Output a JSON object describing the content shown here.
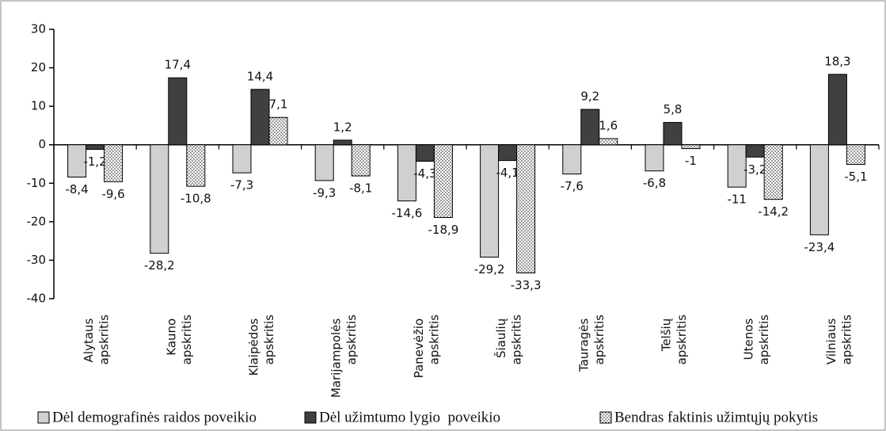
{
  "chart_data": {
    "type": "bar",
    "categories": [
      "Alytaus apskritis",
      "Kauno apskritis",
      "Klaipėdos apskritis",
      "Marijampolės apskritis",
      "Panevėžio apskritis",
      "Šiaulių apskritis",
      "Tauragės apskritis",
      "Telšių apskritis",
      "Utenos apskritis",
      "Vilniaus apskritis"
    ],
    "series": [
      {
        "name": "Dėl demografinės raidos poveikio",
        "color": "#d0d0d0",
        "values": [
          -8.4,
          -28.2,
          -7.3,
          -9.3,
          -14.6,
          -29.2,
          -7.6,
          -6.8,
          -11,
          -23.4
        ],
        "value_labels": [
          "-8,4",
          "-28,2",
          "-7,3",
          "-9,3",
          "-14,6",
          "-29,2",
          "-7,6",
          "-6,8",
          "-11",
          "-23,4"
        ]
      },
      {
        "name": "Dėl užimtumo lygio  poveikio",
        "color": "#404040",
        "values": [
          -1.2,
          17.4,
          14.4,
          1.2,
          -4.3,
          -4.1,
          9.2,
          5.8,
          -3.2,
          18.3
        ],
        "value_labels": [
          "-1,2",
          "17,4",
          "14,4",
          "1,2",
          "-4,3",
          "-4,1",
          "9,2",
          "5,8",
          "-3,2",
          "18,3"
        ]
      },
      {
        "name": "Bendras faktinis užimtųjų pokytis",
        "color": "#ffffff",
        "values": [
          -9.6,
          -10.8,
          7.1,
          -8.1,
          -18.9,
          -33.3,
          1.6,
          -1,
          -14.2,
          -5.1
        ],
        "value_labels": [
          "-9,6",
          "-10,8",
          "7,1",
          "-8,1",
          "-18,9",
          "-33,3",
          "1,6",
          "-1",
          "-14,2",
          "-5,1"
        ]
      }
    ],
    "ylim": [
      -40,
      30
    ],
    "yticks": [
      -40,
      -30,
      -20,
      -10,
      0,
      10,
      20,
      30
    ]
  }
}
